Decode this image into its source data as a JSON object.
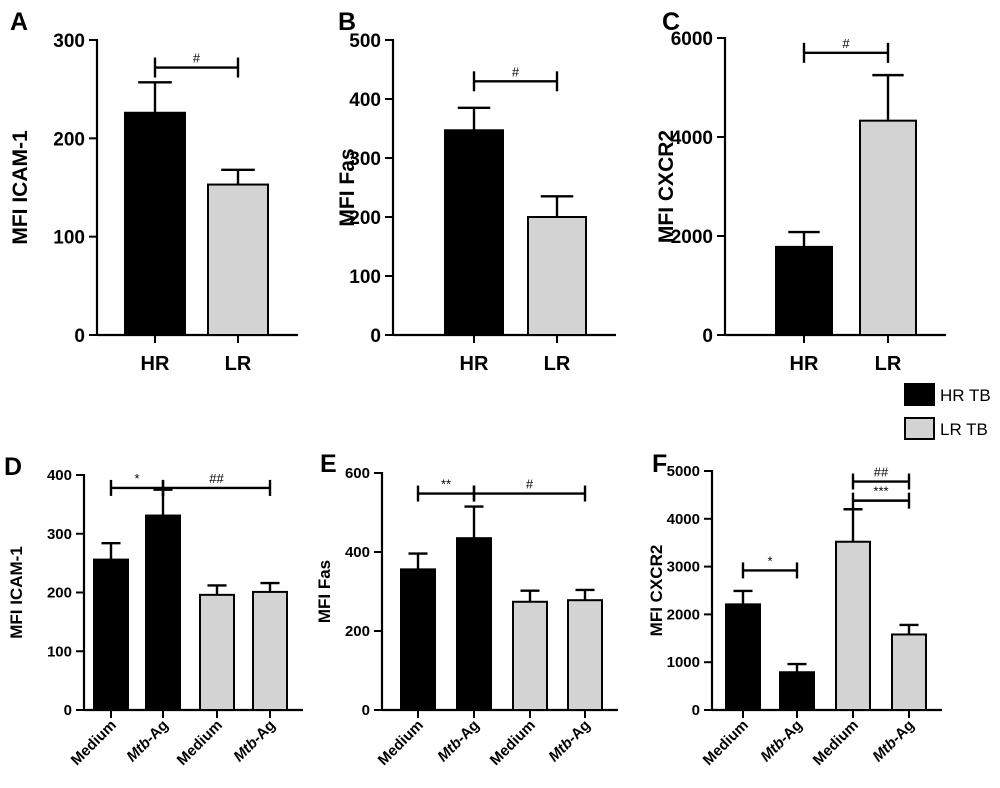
{
  "figure": {
    "colors": {
      "hr": "#000000",
      "lr": "#d3d3d3"
    },
    "legend": [
      {
        "label": "HR TB",
        "color": "#000000"
      },
      {
        "label": "LR TB",
        "color": "#d3d3d3"
      }
    ]
  },
  "chart_data": [
    {
      "panel": "A",
      "type": "bar",
      "ylabel": "MFI ICAM-1",
      "ylim": [
        0,
        300
      ],
      "yticks": [
        0,
        100,
        200,
        300
      ],
      "categories": [
        "HR",
        "LR"
      ],
      "values": [
        226,
        153
      ],
      "errors": [
        31,
        15
      ],
      "colors": [
        "#000000",
        "#d3d3d3"
      ],
      "annotations": [
        {
          "from": 0,
          "to": 1,
          "y": 272,
          "text": "#"
        }
      ]
    },
    {
      "panel": "B",
      "type": "bar",
      "ylabel": "MFI Fas",
      "ylim": [
        0,
        500
      ],
      "yticks": [
        0,
        100,
        200,
        300,
        400,
        500
      ],
      "categories": [
        "HR",
        "LR"
      ],
      "values": [
        347,
        200
      ],
      "errors": [
        38,
        35
      ],
      "colors": [
        "#000000",
        "#d3d3d3"
      ],
      "annotations": [
        {
          "from": 0,
          "to": 1,
          "y": 430,
          "text": "#"
        }
      ]
    },
    {
      "panel": "C",
      "type": "bar",
      "ylabel": "MFI CXCR2",
      "ylim": [
        0,
        6000
      ],
      "yticks": [
        0,
        2000,
        4000,
        6000
      ],
      "categories": [
        "HR",
        "LR"
      ],
      "values": [
        1780,
        4330
      ],
      "errors": [
        300,
        920
      ],
      "colors": [
        "#000000",
        "#d3d3d3"
      ],
      "annotations": [
        {
          "from": 0,
          "to": 1,
          "y": 5700,
          "text": "#"
        }
      ]
    },
    {
      "panel": "D",
      "type": "bar",
      "ylabel": "MFI ICAM-1",
      "ylim": [
        0,
        400
      ],
      "yticks": [
        0,
        100,
        200,
        300,
        400
      ],
      "categories": [
        "Medium",
        "Mtb-Ag",
        "Medium",
        "Mtb-Ag"
      ],
      "values": [
        256,
        331,
        196,
        201
      ],
      "errors": [
        28,
        44,
        16,
        15
      ],
      "colors": [
        "#000000",
        "#000000",
        "#d3d3d3",
        "#d3d3d3"
      ],
      "annotations": [
        {
          "from": 0,
          "to": 1,
          "y": 378,
          "text": "*"
        },
        {
          "from": 1,
          "to": 3,
          "y": 378,
          "text": "##"
        }
      ]
    },
    {
      "panel": "E",
      "type": "bar",
      "ylabel": "MFI Fas",
      "ylim": [
        0,
        600
      ],
      "yticks": [
        0,
        200,
        400,
        600
      ],
      "categories": [
        "Medium",
        "Mtb-Ag",
        "Medium",
        "Mtb-Ag"
      ],
      "values": [
        356,
        435,
        274,
        278
      ],
      "errors": [
        40,
        80,
        28,
        26
      ],
      "colors": [
        "#000000",
        "#000000",
        "#d3d3d3",
        "#d3d3d3"
      ],
      "annotations": [
        {
          "from": 0,
          "to": 1,
          "y": 548,
          "text": "**"
        },
        {
          "from": 1,
          "to": 3,
          "y": 548,
          "text": "#"
        }
      ]
    },
    {
      "panel": "F",
      "type": "bar",
      "ylabel": "MFI CXCR2",
      "ylim": [
        0,
        5000
      ],
      "yticks": [
        0,
        1000,
        2000,
        3000,
        4000,
        5000
      ],
      "categories": [
        "Medium",
        "Mtb-Ag",
        "Medium",
        "Mtb-Ag"
      ],
      "values": [
        2210,
        790,
        3520,
        1580
      ],
      "errors": [
        280,
        170,
        680,
        200
      ],
      "colors": [
        "#000000",
        "#000000",
        "#d3d3d3",
        "#d3d3d3"
      ],
      "annotations": [
        {
          "from": 2,
          "to": 3,
          "y": 4780,
          "text": "##"
        },
        {
          "from": 2,
          "to": 3,
          "y": 4380,
          "text": "***"
        },
        {
          "from": 0,
          "to": 1,
          "y": 2920,
          "text": "*"
        }
      ]
    }
  ]
}
